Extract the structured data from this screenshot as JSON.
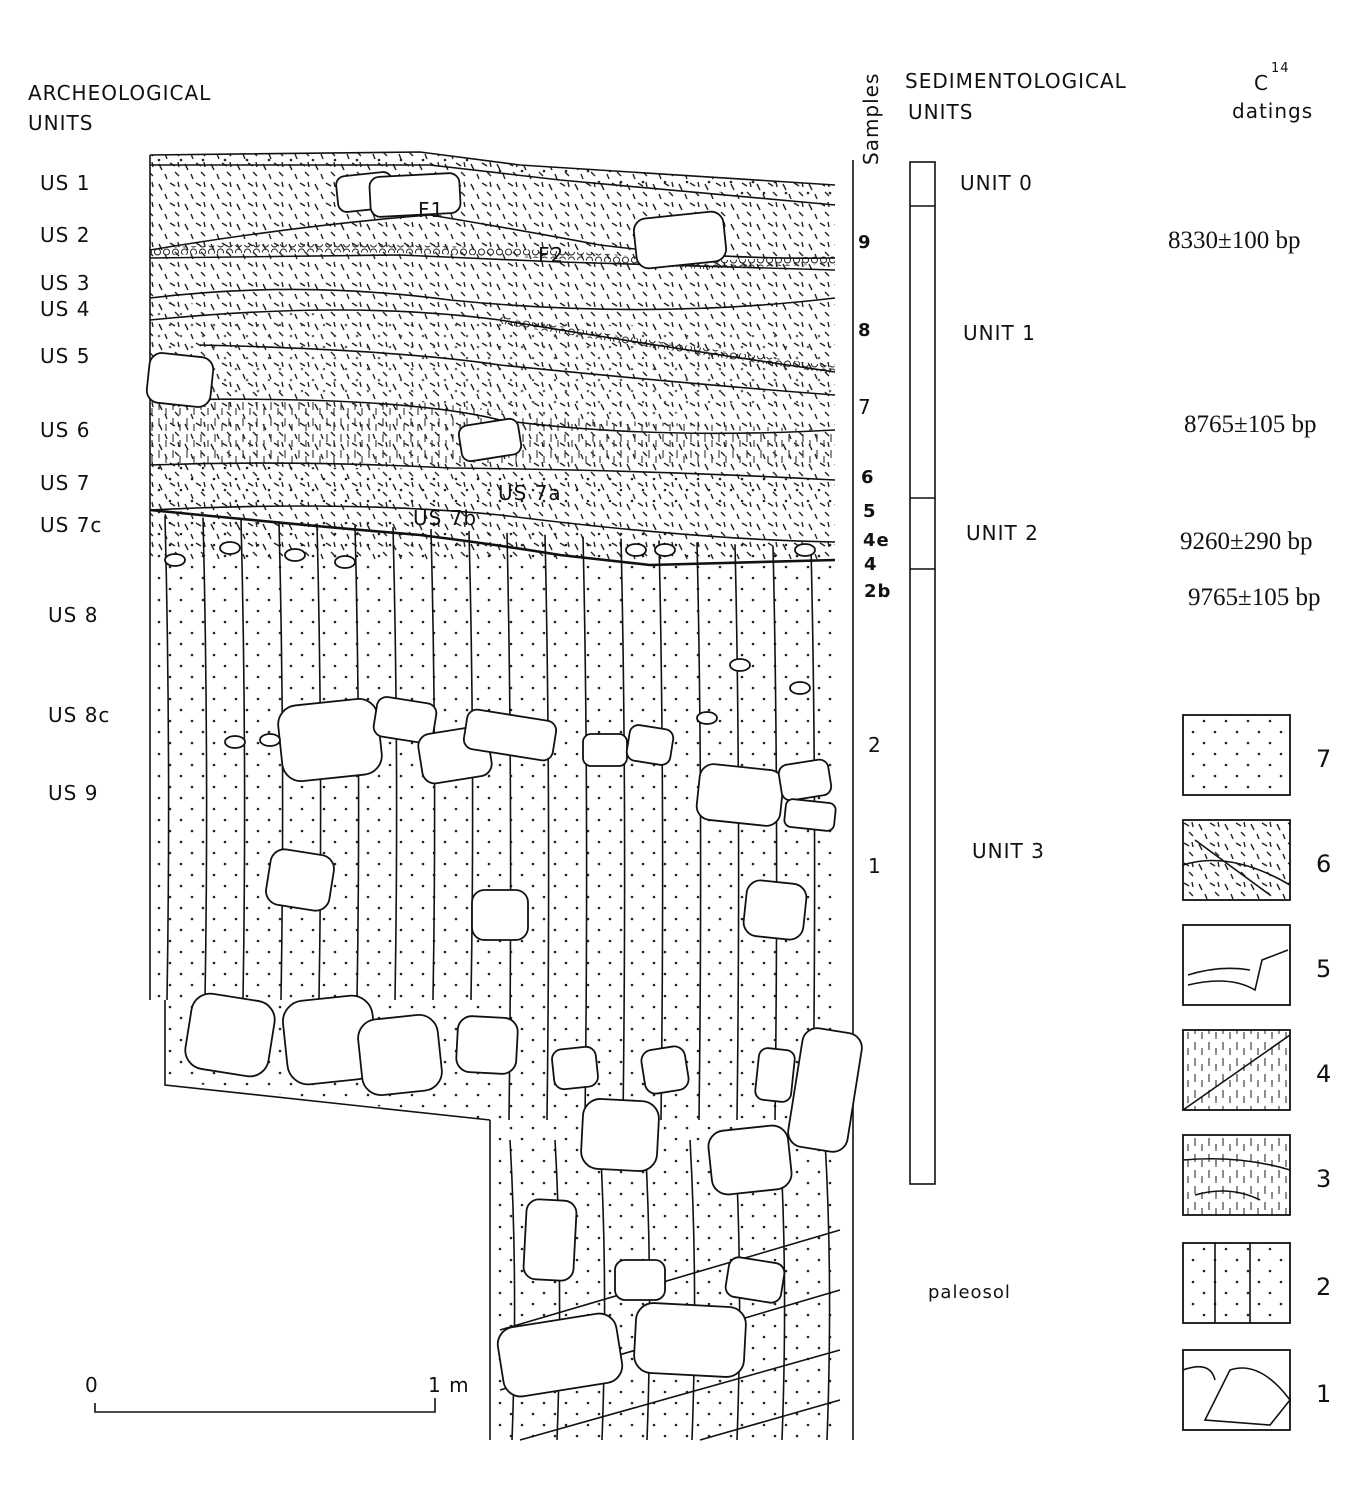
{
  "header": {
    "archeological_units": [
      "ARCHEOLOGICAL",
      "UNITS"
    ],
    "samples": "Samples",
    "sedimentological_units": [
      "SEDIMENTOLOGICAL",
      "UNITS"
    ],
    "dating": {
      "symbol": "C",
      "superscript": "14",
      "label": "datings"
    }
  },
  "archeological_units": [
    "US 1",
    "US 2",
    "US 3",
    "US 4",
    "US 5",
    "US 6",
    "US 7",
    "US 7c",
    "US 8",
    "US 8c",
    "US 9"
  ],
  "section_labels": [
    "F1",
    "F2",
    "US 7a",
    "US 7b"
  ],
  "samples": [
    "9",
    "8",
    "7",
    "6",
    "5",
    "4e",
    "4",
    "2b",
    "2",
    "1"
  ],
  "sedimentological_units": [
    "UNIT 0",
    "UNIT 1",
    "UNIT 2",
    "UNIT 3",
    "paleosol"
  ],
  "datings": [
    "8330±100 bp",
    "8765±105 bp",
    "9260±290 bp",
    "9765±105 bp"
  ],
  "legend": [
    "7",
    "6",
    "5",
    "4",
    "3",
    "2",
    "1"
  ],
  "scale": {
    "start": "0",
    "end": "1 m"
  }
}
